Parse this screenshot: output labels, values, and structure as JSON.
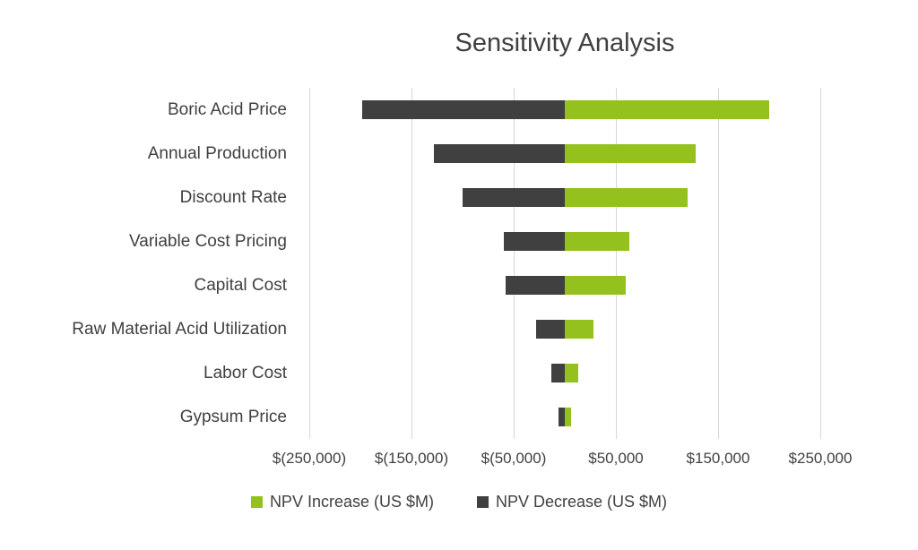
{
  "chart_data": {
    "type": "bar",
    "orientation": "horizontal-tornado",
    "title": "Sensitivity Analysis",
    "categories": [
      "Boric Acid Price",
      "Annual Production",
      "Discount Rate",
      "Variable Cost Pricing",
      "Capital Cost",
      "Raw Material Acid Utilization",
      "Labor Cost",
      "Gypsum Price"
    ],
    "series": [
      {
        "name": "NPV Increase (US $M)",
        "color": "#95c11f",
        "values": [
          200000,
          128000,
          120000,
          63000,
          60000,
          28000,
          13000,
          6000
        ]
      },
      {
        "name": "NPV Decrease (US $M)",
        "color": "#404040",
        "values": [
          -198000,
          -128000,
          -100000,
          -60000,
          -58000,
          -28000,
          -13000,
          -6000
        ]
      }
    ],
    "xlim": [
      -250000,
      250000
    ],
    "x_tick_values": [
      -250000,
      -150000,
      -50000,
      50000,
      150000,
      250000
    ],
    "x_ticks": [
      "$(250,000)",
      "$(150,000)",
      "$(50,000)",
      "$50,000",
      "$150,000",
      "$250,000"
    ],
    "grid": true,
    "legend_position": "bottom",
    "colors": {
      "gridline": "#d6d6d6",
      "text": "#404040",
      "background": "#ffffff"
    }
  }
}
